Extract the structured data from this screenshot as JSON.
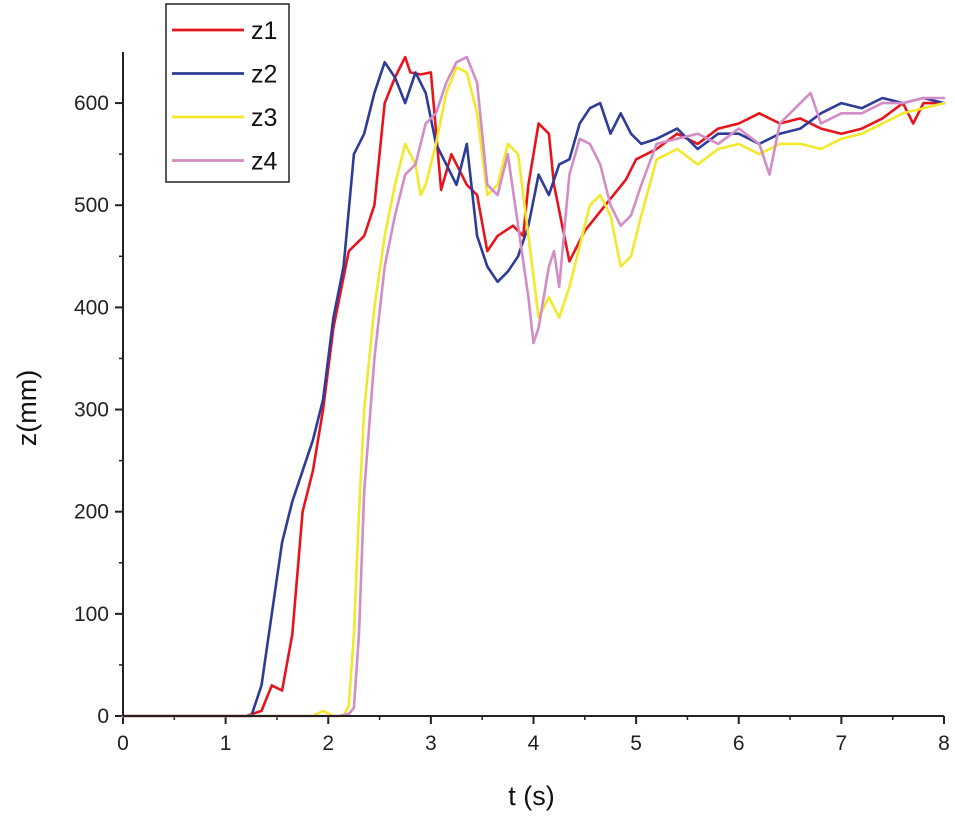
{
  "chart_data": {
    "type": "line",
    "xlabel": "t (s)",
    "ylabel": "z(mm)",
    "xlim": [
      0,
      8
    ],
    "ylim": [
      0,
      650
    ],
    "xticks": [
      0,
      1,
      2,
      3,
      4,
      5,
      6,
      7,
      8
    ],
    "yticks": [
      0,
      100,
      200,
      300,
      400,
      500,
      600
    ],
    "grid": false,
    "legend_position": "top-left",
    "series": [
      {
        "name": "z1",
        "color": "#e8141c",
        "x": [
          0,
          1.2,
          1.35,
          1.45,
          1.55,
          1.65,
          1.75,
          1.85,
          1.95,
          2.05,
          2.2,
          2.35,
          2.45,
          2.55,
          2.65,
          2.75,
          2.8,
          2.9,
          3.0,
          3.1,
          3.2,
          3.35,
          3.45,
          3.55,
          3.65,
          3.8,
          3.9,
          3.95,
          4.05,
          4.15,
          4.2,
          4.35,
          4.5,
          4.7,
          4.9,
          5.0,
          5.2,
          5.4,
          5.6,
          5.8,
          6.0,
          6.2,
          6.4,
          6.6,
          6.8,
          7.0,
          7.2,
          7.4,
          7.6,
          7.7,
          7.8,
          8.0
        ],
        "y": [
          0,
          0,
          5,
          30,
          25,
          80,
          200,
          240,
          300,
          380,
          455,
          470,
          500,
          600,
          625,
          645,
          630,
          628,
          630,
          515,
          550,
          520,
          510,
          455,
          470,
          480,
          470,
          520,
          580,
          570,
          520,
          445,
          475,
          500,
          525,
          545,
          555,
          570,
          560,
          575,
          580,
          590,
          580,
          585,
          575,
          570,
          575,
          585,
          600,
          580,
          600,
          600
        ]
      },
      {
        "name": "z2",
        "color": "#2e3c99",
        "x": [
          0,
          1.25,
          1.35,
          1.45,
          1.55,
          1.65,
          1.75,
          1.85,
          1.95,
          2.05,
          2.15,
          2.25,
          2.35,
          2.45,
          2.55,
          2.65,
          2.75,
          2.85,
          2.95,
          3.05,
          3.15,
          3.25,
          3.35,
          3.45,
          3.55,
          3.65,
          3.75,
          3.85,
          3.95,
          4.05,
          4.15,
          4.25,
          4.35,
          4.45,
          4.55,
          4.65,
          4.75,
          4.85,
          4.95,
          5.05,
          5.2,
          5.4,
          5.6,
          5.8,
          6.0,
          6.2,
          6.4,
          6.6,
          6.8,
          7.0,
          7.2,
          7.4,
          7.6,
          7.8,
          8.0
        ],
        "y": [
          0,
          0,
          30,
          100,
          170,
          210,
          240,
          270,
          310,
          390,
          440,
          550,
          570,
          610,
          640,
          625,
          600,
          630,
          610,
          560,
          540,
          520,
          560,
          470,
          440,
          425,
          435,
          450,
          480,
          530,
          510,
          540,
          545,
          580,
          595,
          600,
          570,
          590,
          570,
          560,
          565,
          575,
          555,
          570,
          570,
          560,
          570,
          575,
          590,
          600,
          595,
          605,
          600,
          605,
          600
        ]
      },
      {
        "name": "z3",
        "color": "#f2e82c",
        "x": [
          0,
          1.85,
          1.95,
          2.05,
          2.15,
          2.2,
          2.25,
          2.3,
          2.35,
          2.45,
          2.55,
          2.65,
          2.75,
          2.85,
          2.9,
          2.95,
          3.05,
          3.15,
          3.25,
          3.35,
          3.45,
          3.55,
          3.65,
          3.75,
          3.85,
          3.95,
          4.05,
          4.15,
          4.25,
          4.35,
          4.45,
          4.55,
          4.65,
          4.75,
          4.85,
          4.95,
          5.05,
          5.2,
          5.4,
          5.6,
          5.8,
          6.0,
          6.2,
          6.4,
          6.6,
          6.8,
          7.0,
          7.2,
          7.4,
          7.6,
          7.8,
          8.0
        ],
        "y": [
          0,
          0,
          5,
          0,
          0,
          10,
          80,
          200,
          300,
          400,
          470,
          520,
          560,
          540,
          510,
          520,
          560,
          610,
          635,
          630,
          590,
          510,
          520,
          560,
          550,
          470,
          390,
          410,
          390,
          420,
          460,
          500,
          510,
          490,
          440,
          450,
          490,
          545,
          555,
          540,
          555,
          560,
          550,
          560,
          560,
          555,
          565,
          570,
          580,
          590,
          595,
          600
        ]
      },
      {
        "name": "z4",
        "color": "#d38cc6",
        "x": [
          0,
          2.1,
          2.2,
          2.25,
          2.3,
          2.35,
          2.45,
          2.55,
          2.65,
          2.75,
          2.85,
          2.95,
          3.05,
          3.15,
          3.25,
          3.35,
          3.45,
          3.55,
          3.65,
          3.75,
          3.85,
          3.95,
          4.0,
          4.05,
          4.15,
          4.2,
          4.25,
          4.35,
          4.45,
          4.55,
          4.65,
          4.75,
          4.85,
          4.95,
          5.05,
          5.2,
          5.4,
          5.6,
          5.8,
          6.0,
          6.2,
          6.3,
          6.4,
          6.6,
          6.7,
          6.8,
          7.0,
          7.2,
          7.4,
          7.6,
          7.8,
          8.0
        ],
        "y": [
          0,
          0,
          2,
          8,
          80,
          220,
          350,
          440,
          490,
          530,
          540,
          580,
          590,
          620,
          640,
          645,
          620,
          520,
          510,
          550,
          480,
          410,
          365,
          380,
          440,
          455,
          420,
          530,
          565,
          560,
          540,
          500,
          480,
          490,
          520,
          560,
          565,
          570,
          560,
          575,
          560,
          530,
          580,
          600,
          610,
          580,
          590,
          590,
          600,
          600,
          605,
          605
        ]
      }
    ]
  }
}
